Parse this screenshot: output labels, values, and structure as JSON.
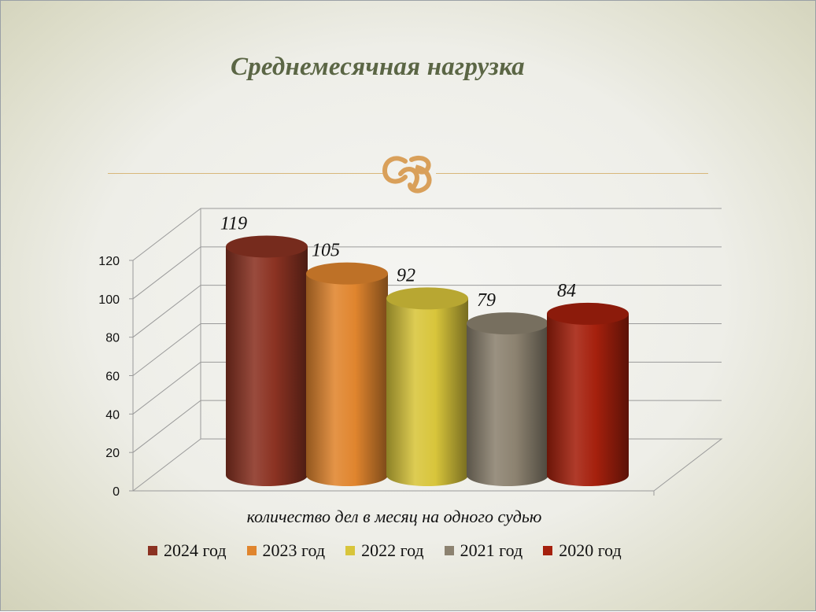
{
  "slide": {
    "title": "Среднемесячная нагрузка"
  },
  "colors": {
    "title": "#5b6645",
    "ornament": "#d9a05a",
    "grid": "#9a9a9a"
  },
  "chart_data": {
    "type": "bar",
    "style": "3d-cylinder",
    "title": "",
    "xlabel": "количество дел в месяц на одного судью",
    "ylabel": "",
    "ylim": [
      0,
      120
    ],
    "yticks": [
      0,
      20,
      40,
      60,
      80,
      100,
      120
    ],
    "grid": true,
    "legend_position": "bottom",
    "categories": [
      "количество дел в месяц на одного судью"
    ],
    "series": [
      {
        "name": "2024 год",
        "values": [
          119
        ],
        "color": "#8b3222"
      },
      {
        "name": "2023 год",
        "values": [
          105
        ],
        "color": "#e0852e"
      },
      {
        "name": "2022 год",
        "values": [
          92
        ],
        "color": "#d8c53b"
      },
      {
        "name": "2021 год",
        "values": [
          79
        ],
        "color": "#8c8270"
      },
      {
        "name": "2020 год",
        "values": [
          84
        ],
        "color": "#a5200d"
      }
    ]
  }
}
